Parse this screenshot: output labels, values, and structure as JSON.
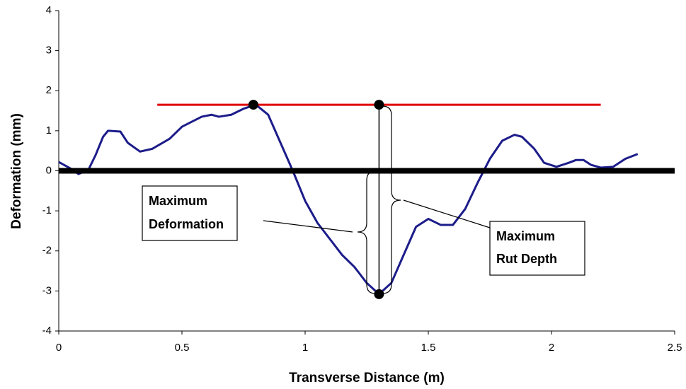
{
  "chart_data": {
    "type": "line",
    "x_label": "Transverse Distance (m)",
    "y_label": "Deformation (mm)",
    "xlim": [
      0,
      2.5
    ],
    "ylim": [
      -4,
      4
    ],
    "xticks": [
      0,
      0.5,
      1,
      1.5,
      2,
      2.5
    ],
    "yticks": [
      -4,
      -3,
      -2,
      -1,
      0,
      1,
      2,
      3,
      4
    ],
    "series": [
      {
        "color": "#1c1c8a",
        "width": 3,
        "x": [
          0,
          0.05,
          0.08,
          0.12,
          0.15,
          0.18,
          0.2,
          0.25,
          0.28,
          0.33,
          0.38,
          0.45,
          0.5,
          0.58,
          0.62,
          0.65,
          0.7,
          0.75,
          0.8,
          0.85,
          0.9,
          0.95,
          1.0,
          1.05,
          1.1,
          1.15,
          1.2,
          1.25,
          1.3,
          1.35,
          1.4,
          1.45,
          1.5,
          1.55,
          1.6,
          1.65,
          1.7,
          1.75,
          1.8,
          1.85,
          1.88,
          1.93,
          1.97,
          2.02,
          2.07,
          2.1,
          2.13,
          2.16,
          2.2,
          2.25,
          2.3,
          2.35
        ],
        "values": [
          0.22,
          0.05,
          -0.08,
          0.02,
          0.4,
          0.85,
          1.0,
          0.98,
          0.7,
          0.48,
          0.55,
          0.8,
          1.1,
          1.35,
          1.4,
          1.35,
          1.4,
          1.55,
          1.65,
          1.4,
          0.7,
          0.0,
          -0.75,
          -1.3,
          -1.7,
          -2.1,
          -2.4,
          -2.8,
          -3.08,
          -2.8,
          -2.1,
          -1.4,
          -1.2,
          -1.35,
          -1.35,
          -0.95,
          -0.3,
          0.3,
          0.75,
          0.9,
          0.85,
          0.55,
          0.2,
          0.1,
          0.2,
          0.27,
          0.27,
          0.15,
          0.08,
          0.1,
          0.3,
          0.42
        ]
      },
      {
        "color": "#e00000",
        "width": 3,
        "x": [
          0.4,
          2.2
        ],
        "values": [
          1.65,
          1.65
        ]
      },
      {
        "color": "#000000",
        "width": 8,
        "x": [
          0,
          2.5
        ],
        "values": [
          0,
          0
        ]
      }
    ],
    "points": {
      "color": "#000000",
      "x": [
        0.79,
        1.3,
        1.3
      ],
      "values": [
        1.65,
        1.65,
        -3.08
      ]
    },
    "annotations": [
      {
        "lines": [
          "Maximum",
          "Deformation"
        ]
      },
      {
        "lines": [
          "Maximum",
          "Rut Depth"
        ]
      }
    ]
  }
}
